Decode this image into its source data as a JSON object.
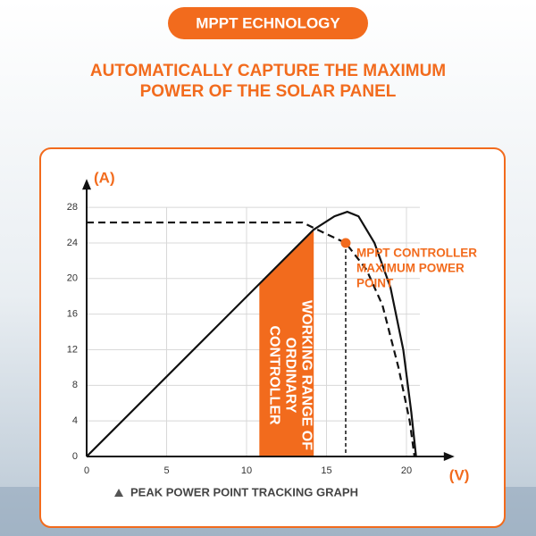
{
  "badge": "MPPT ECHNOLOGY",
  "headline": [
    "AUTOMATICALLY CAPTURE THE MAXIMUM",
    "POWER OF THE SOLAR PANEL"
  ],
  "chart_data": {
    "type": "line",
    "y_label": "(A)",
    "x_label": "(V)",
    "caption": "PEAK POWER POINT TRACKING GRAPH",
    "xlim": [
      0,
      22
    ],
    "ylim": [
      0,
      31
    ],
    "xticks": [
      0,
      5,
      10,
      15,
      20
    ],
    "yticks": [
      0,
      4,
      8,
      12,
      16,
      20,
      24,
      28
    ],
    "grid": true,
    "series": [
      {
        "style": "solid",
        "color": "#111111",
        "x": [
          0,
          14.2,
          15.5,
          16.3,
          17,
          18,
          19,
          19.8,
          20.3,
          20.6
        ],
        "values": [
          0,
          25.5,
          27,
          27.5,
          27,
          24,
          19,
          12,
          5,
          0
        ]
      },
      {
        "style": "dashed",
        "color": "#111111",
        "x": [
          0,
          13.5,
          15,
          16.2,
          17.5,
          18.5,
          19.5,
          20.2,
          20.5
        ],
        "values": [
          26.3,
          26.3,
          25,
          24,
          21,
          17,
          10,
          4,
          0
        ]
      }
    ],
    "band": {
      "x": [
        10.8,
        14.2
      ],
      "color": "#f26b1d",
      "label": [
        "WORKING RANGE OF",
        "ORDINARY",
        "CONTROLLER"
      ]
    },
    "point": {
      "x": 16.2,
      "y": 24,
      "color": "#f26b1d",
      "label": [
        "MPPT CONTROLLER",
        "MAXIMUM POWER",
        "POINT"
      ]
    }
  }
}
